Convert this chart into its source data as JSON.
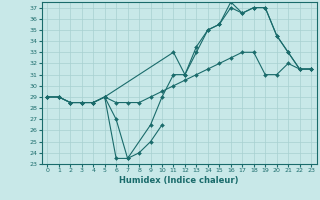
{
  "xlabel": "Humidex (Indice chaleur)",
  "bg_color": "#c8e8e8",
  "grid_color": "#a8d0d0",
  "line_color": "#1a6b6b",
  "xlim": [
    -0.5,
    23.5
  ],
  "ylim": [
    23,
    37.5
  ],
  "yticks": [
    23,
    24,
    25,
    26,
    27,
    28,
    29,
    30,
    31,
    32,
    33,
    34,
    35,
    36,
    37
  ],
  "xticks": [
    0,
    1,
    2,
    3,
    4,
    5,
    6,
    7,
    8,
    9,
    10,
    11,
    12,
    13,
    14,
    15,
    16,
    17,
    18,
    19,
    20,
    21,
    22,
    23
  ],
  "series": [
    {
      "x": [
        0,
        1,
        2,
        3,
        4,
        5,
        11,
        12,
        13,
        14,
        15,
        16,
        17,
        18,
        19,
        20,
        21,
        22,
        23
      ],
      "y": [
        29,
        29,
        28.5,
        28.5,
        28.5,
        29,
        33,
        31,
        33.5,
        35,
        35.5,
        37.5,
        36.5,
        37,
        37,
        34.5,
        33,
        31.5,
        31.5
      ]
    },
    {
      "x": [
        0,
        1,
        2,
        3,
        4,
        5,
        6,
        7,
        9,
        10,
        11,
        12,
        13,
        14,
        15,
        16,
        17,
        18,
        19,
        20,
        21,
        22,
        23
      ],
      "y": [
        29,
        29,
        28.5,
        28.5,
        28.5,
        29,
        23.5,
        23.5,
        26.5,
        29,
        31,
        31,
        33,
        35,
        35.5,
        37,
        36.5,
        37,
        37,
        34.5,
        33,
        31.5,
        31.5
      ]
    },
    {
      "x": [
        0,
        1,
        2,
        3,
        4,
        5,
        6,
        7,
        8,
        9,
        10,
        11,
        12,
        13,
        14,
        15,
        16,
        17,
        18,
        19,
        20,
        21,
        22,
        23
      ],
      "y": [
        29,
        29,
        28.5,
        28.5,
        28.5,
        29,
        28.5,
        28.5,
        28.5,
        29,
        29.5,
        30,
        30.5,
        31,
        31.5,
        32,
        32.5,
        33,
        33,
        31,
        31,
        32,
        31.5,
        31.5
      ]
    },
    {
      "x": [
        5,
        6,
        7,
        8,
        9,
        10
      ],
      "y": [
        29,
        27,
        23.5,
        24,
        25,
        26.5
      ]
    }
  ]
}
